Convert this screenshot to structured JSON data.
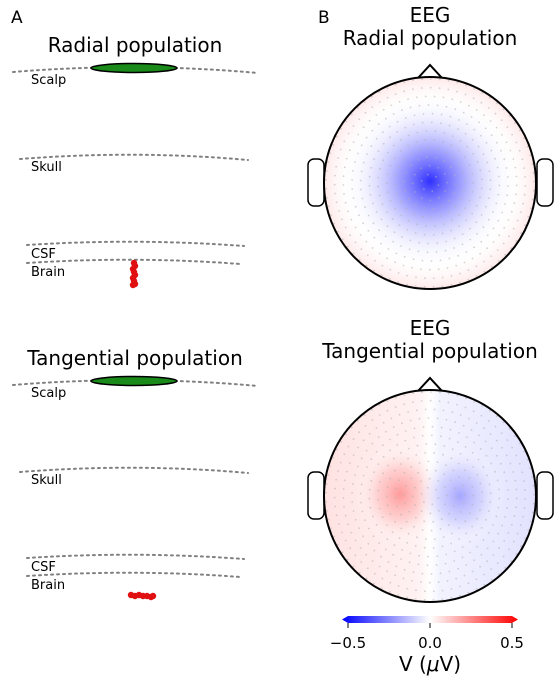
{
  "panels": {
    "a_letter": "A",
    "b_letter": "B"
  },
  "left": {
    "radial_title": "Radial population",
    "tangential_title": "Tangential population",
    "layers": {
      "scalp": "Scalp",
      "skull": "Skull",
      "csf": "CSF",
      "brain": "Brain"
    }
  },
  "right": {
    "top_title_line1": "EEG",
    "top_title_line2": "Radial population",
    "bottom_title_line1": "EEG",
    "bottom_title_line2": "Tangential population"
  },
  "colorbar": {
    "ticks": [
      "−0.5",
      "0.0",
      "0.5"
    ],
    "tick_values": [
      -0.5,
      0.0,
      0.5
    ],
    "range": [
      -0.5,
      0.5
    ],
    "label_main": "V (",
    "label_mu": "μ",
    "label_tail": "V)",
    "colormap": "bwr"
  },
  "colors": {
    "electrode_fill": "#1a8a1a",
    "population_red": "#e01010",
    "layer_line": "#808080",
    "negative": "#0000ff",
    "positive": "#ff0000"
  }
}
